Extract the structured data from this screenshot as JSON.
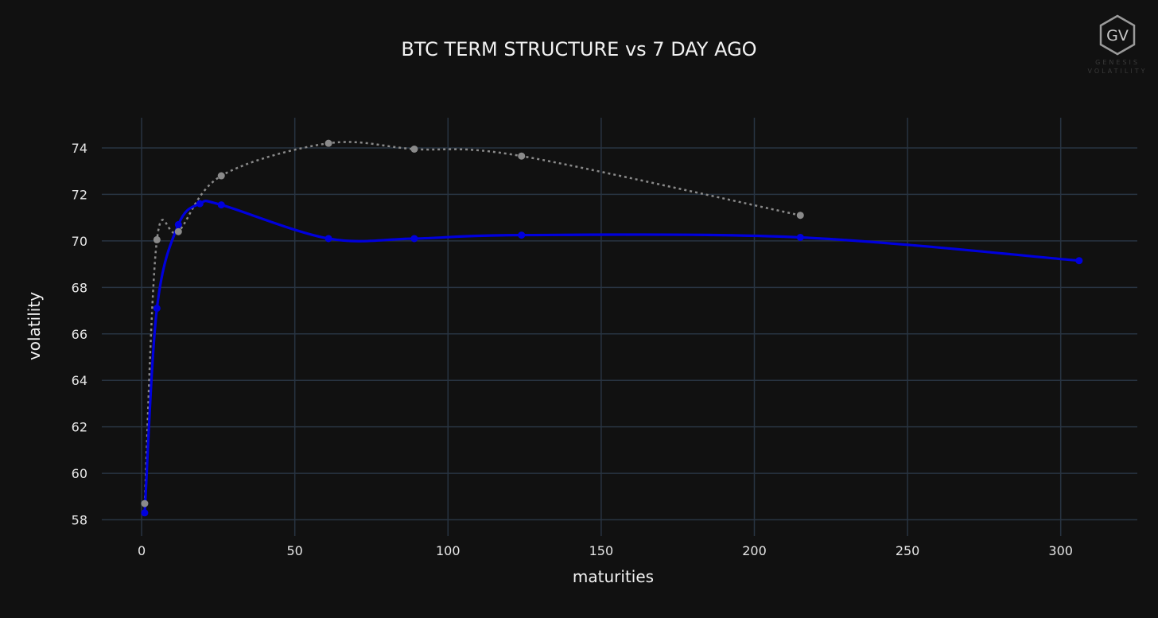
{
  "chart_data": {
    "type": "line",
    "title": "BTC TERM STRUCTURE vs 7 DAY AGO",
    "xlabel": "maturities",
    "ylabel": "volatility",
    "xlim": [
      -13,
      325
    ],
    "ylim": [
      57.3,
      75.3
    ],
    "xticks": [
      0,
      50,
      100,
      150,
      200,
      250,
      300
    ],
    "yticks": [
      58,
      60,
      62,
      64,
      66,
      68,
      70,
      72,
      74
    ],
    "grid": true,
    "legend": "none",
    "series": [
      {
        "color": "#0000dd",
        "style": "solid",
        "x": [
          1,
          5,
          12,
          19,
          26,
          61,
          89,
          124,
          215,
          306
        ],
        "y": [
          58.3,
          67.1,
          70.7,
          71.6,
          71.55,
          70.1,
          70.1,
          70.25,
          70.15,
          69.15
        ]
      },
      {
        "color": "#8a8a8a",
        "style": "dotted",
        "x": [
          1,
          5,
          12,
          26,
          61,
          89,
          124,
          215
        ],
        "y": [
          58.7,
          70.05,
          70.4,
          72.8,
          74.2,
          73.95,
          73.65,
          71.1
        ]
      }
    ]
  },
  "logo": {
    "initials": "GV",
    "line1": "GENESIS",
    "line2": "VOLATILITY"
  }
}
